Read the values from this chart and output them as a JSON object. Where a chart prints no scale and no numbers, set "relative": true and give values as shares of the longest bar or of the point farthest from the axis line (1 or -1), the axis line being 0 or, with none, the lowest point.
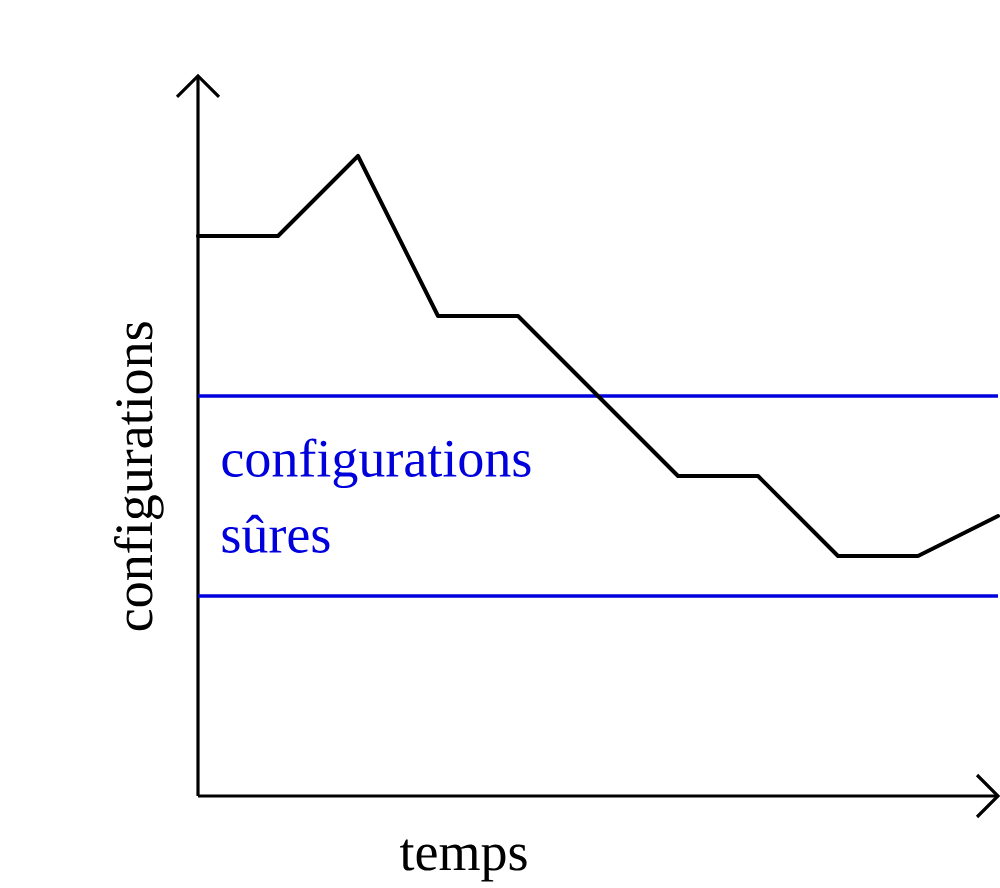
{
  "chart_data": {
    "type": "line",
    "xlabel": "temps",
    "ylabel": "configurations",
    "categories": [
      null,
      null,
      null,
      null,
      null,
      null,
      null,
      null,
      null,
      null,
      null
    ],
    "values": [
      0.875,
      0.875,
      1,
      0.75,
      0.75,
      0.625,
      0.5,
      0.5,
      0.375,
      0.375,
      0.4375
    ],
    "color": "#000000",
    "relative": true,
    "ref_lines": [
      {
        "axis": "y",
        "value": 0.625,
        "label": "configurations sûres",
        "color": "#0000dd"
      },
      {
        "axis": "y",
        "value": 0.3125,
        "color": "#0000dd"
      }
    ]
  }
}
